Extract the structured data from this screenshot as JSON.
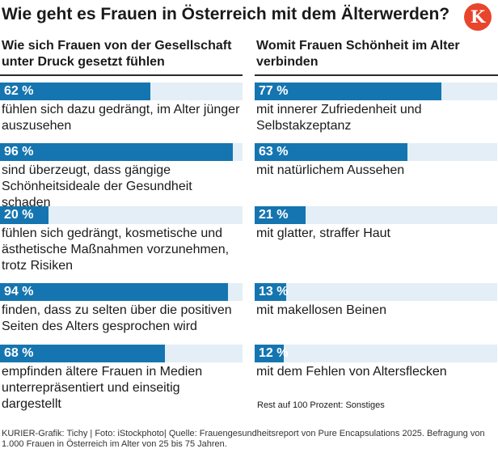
{
  "title": "Wie geht es Frauen in Österreich mit dem Älterwerden?",
  "logo": {
    "letter": "K"
  },
  "left": {
    "heading": "Wie sich Frauen von der Gesellschaft unter Druck gesetzt fühlen",
    "items": [
      {
        "value": 62,
        "pct_label": "62 %",
        "text": "fühlen sich dazu gedrängt, im Alter jünger auszusehen"
      },
      {
        "value": 96,
        "pct_label": "96 %",
        "text": "sind überzeugt, dass gängige Schönheitsideale der Gesundheit schaden"
      },
      {
        "value": 20,
        "pct_label": "20 %",
        "text": "fühlen sich gedrängt, kosmetische und ästhetische Maßnahmen vorzunehmen, trotz Risiken"
      },
      {
        "value": 94,
        "pct_label": "94 %",
        "text": "finden, dass zu selten über die positiven Seiten des Alters gesprochen wird"
      },
      {
        "value": 68,
        "pct_label": "68 %",
        "text": "empfinden ältere Frauen in Medien unterrepräsentiert und einseitig dargestellt"
      }
    ]
  },
  "right": {
    "heading": "Womit Frauen Schönheit im Alter verbinden",
    "items": [
      {
        "value": 77,
        "pct_label": "77 %",
        "text": "mit innerer Zufriedenheit und Selbstakzeptanz"
      },
      {
        "value": 63,
        "pct_label": "63 %",
        "text": "mit natürlichem Aussehen"
      },
      {
        "value": 21,
        "pct_label": "21 %",
        "text": "mit glatter, straffer Haut"
      },
      {
        "value": 13,
        "pct_label": "13 %",
        "text": "mit makellosen Beinen"
      },
      {
        "value": 12,
        "pct_label": "12 %",
        "text": "mit dem Fehlen von Altersflecken"
      }
    ],
    "note": "Rest auf 100 Prozent: Sonstiges"
  },
  "source": "KURIER-Grafik: Tichy | Foto: iStockphoto| Quelle: Frauengesundheitsreport von Pure Encapsulations 2025. Befragung von 1.000 Frauen in Österreich im Alter von 25 bis 75 Jahren.",
  "colors": {
    "bar": "#1575b0",
    "track": "#e3eef7",
    "logo": "#e8452c"
  },
  "chart_data": {
    "type": "bar",
    "title": "Wie geht es Frauen in Österreich mit dem Älterwerden?",
    "xlabel": "",
    "ylabel": "",
    "ylim": [
      0,
      100
    ],
    "series": [
      {
        "name": "Wie sich Frauen von der Gesellschaft unter Druck gesetzt fühlen",
        "categories": [
          "fühlen sich dazu gedrängt, im Alter jünger auszusehen",
          "sind überzeugt, dass gängige Schönheitsideale der Gesundheit schaden",
          "fühlen sich gedrängt, kosmetische und ästhetische Maßnahmen vorzunehmen, trotz Risiken",
          "finden, dass zu selten über die positiven Seiten des Alters gesprochen wird",
          "empfinden ältere Frauen in Medien unterrepräsentiert und einseitig dargestellt"
        ],
        "values": [
          62,
          96,
          20,
          94,
          68
        ]
      },
      {
        "name": "Womit Frauen Schönheit im Alter verbinden",
        "categories": [
          "mit innerer Zufriedenheit und Selbstakzeptanz",
          "mit natürlichem Aussehen",
          "mit glatter, straffer Haut",
          "mit makellosen Beinen",
          "mit dem Fehlen von Altersflecken"
        ],
        "values": [
          77,
          63,
          21,
          13,
          12
        ]
      }
    ]
  }
}
